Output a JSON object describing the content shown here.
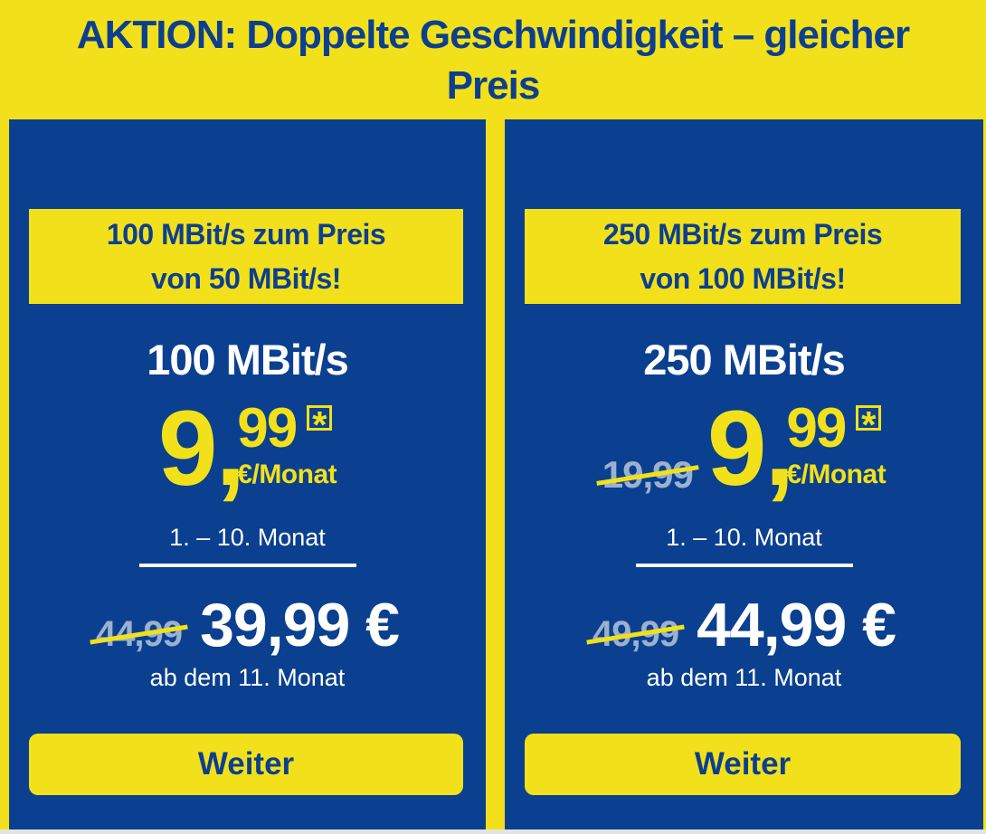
{
  "theme": {
    "background_yellow": "#f2e11a",
    "card_blue": "#0a408f",
    "text_white": "#ffffff",
    "muted_old_price": "#9cb0d0"
  },
  "header": {
    "title_line1": "AKTION: Doppelte Geschwindigkeit – gleicher",
    "title_line2": "Preis"
  },
  "cards": [
    {
      "banner_line1": "100 MBit/s zum Preis",
      "banner_line2": "von 50 MBit/s!",
      "speed": "100 MBit/s",
      "promo": {
        "price_main": "9",
        "price_comma": ",",
        "price_frac": "99",
        "asterisk": "*",
        "unit": "€/Monat",
        "period": "1. – 10. Monat"
      },
      "regular": {
        "old_price": "44,99",
        "price": "39,99 €",
        "period": "ab dem 11. Monat"
      },
      "cta_label": "Weiter"
    },
    {
      "banner_line1": "250 MBit/s zum Preis",
      "banner_line2": "von 100 MBit/s!",
      "speed": "250 MBit/s",
      "promo": {
        "old_price": "19,99",
        "price_main": "9",
        "price_comma": ",",
        "price_frac": "99",
        "asterisk": "*",
        "unit": "€/Monat",
        "period": "1. – 10. Monat"
      },
      "regular": {
        "old_price": "49,99",
        "price": "44,99 €",
        "period": "ab dem 11. Monat"
      },
      "cta_label": "Weiter"
    }
  ]
}
